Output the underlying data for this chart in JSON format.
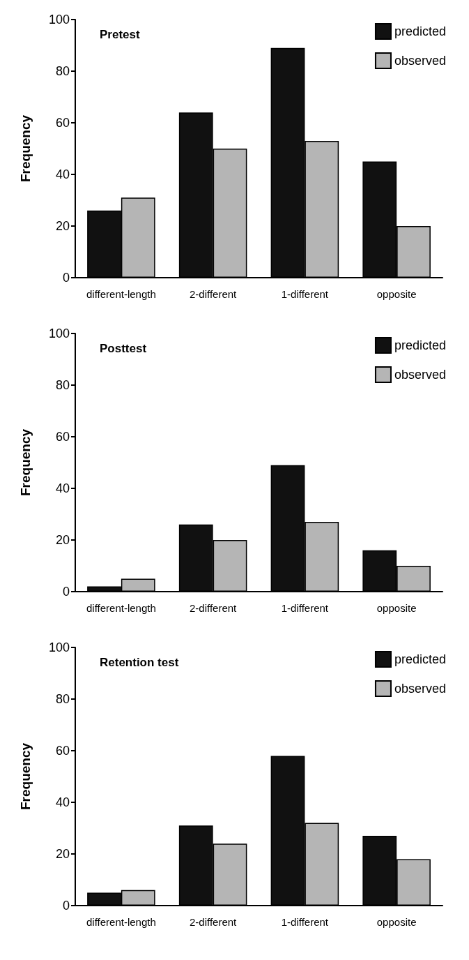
{
  "chart_data": [
    {
      "type": "bar",
      "title": "Pretest",
      "ylabel": "Frequency",
      "categories": [
        "different-length",
        "2-different",
        "1-different",
        "opposite"
      ],
      "series": [
        {
          "name": "predicted",
          "color": "#111111",
          "values": [
            26,
            64,
            89,
            45
          ]
        },
        {
          "name": "observed",
          "color": "#b5b5b5",
          "values": [
            31,
            50,
            53,
            20
          ]
        }
      ],
      "ylim": [
        0,
        100
      ],
      "yticks": [
        0,
        20,
        40,
        60,
        80,
        100
      ],
      "grid": false,
      "legend": "top right"
    },
    {
      "type": "bar",
      "title": "Posttest",
      "ylabel": "Frequency",
      "categories": [
        "different-length",
        "2-different",
        "1-different",
        "opposite"
      ],
      "series": [
        {
          "name": "predicted",
          "color": "#111111",
          "values": [
            2,
            26,
            49,
            16
          ]
        },
        {
          "name": "observed",
          "color": "#b5b5b5",
          "values": [
            5,
            20,
            27,
            10
          ]
        }
      ],
      "ylim": [
        0,
        100
      ],
      "yticks": [
        0,
        20,
        40,
        60,
        80,
        100
      ],
      "grid": false,
      "legend": "top right"
    },
    {
      "type": "bar",
      "title": "Retention test",
      "ylabel": "Frequency",
      "categories": [
        "different-length",
        "2-different",
        "1-different",
        "opposite"
      ],
      "series": [
        {
          "name": "predicted",
          "color": "#111111",
          "values": [
            5,
            31,
            58,
            27
          ]
        },
        {
          "name": "observed",
          "color": "#b5b5b5",
          "values": [
            6,
            24,
            32,
            18
          ]
        }
      ],
      "ylim": [
        0,
        100
      ],
      "yticks": [
        0,
        20,
        40,
        60,
        80,
        100
      ],
      "grid": false,
      "legend": "top right"
    }
  ]
}
